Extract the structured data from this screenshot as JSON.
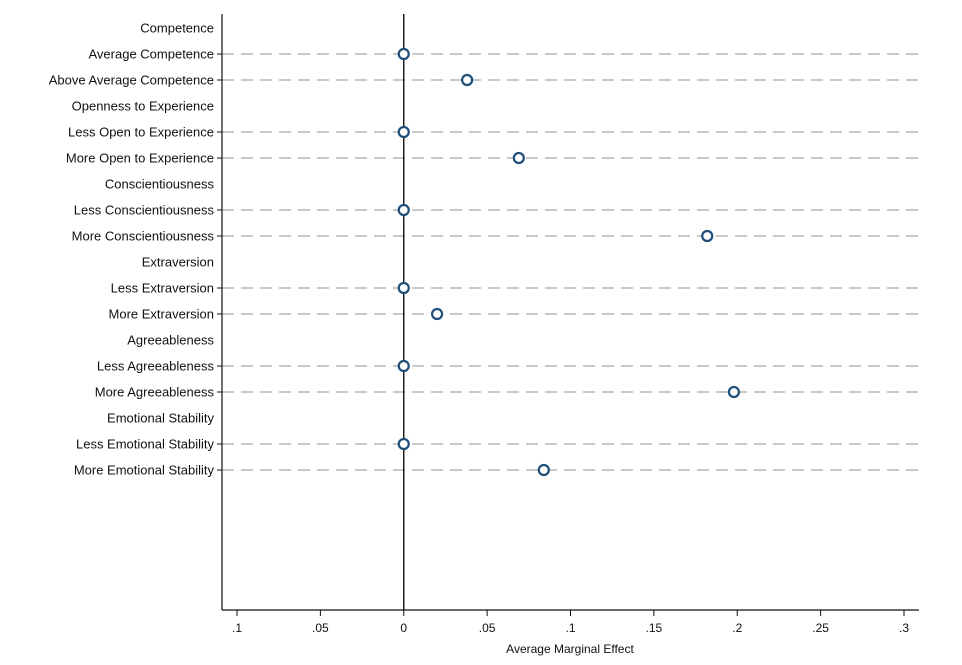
{
  "chart_data": {
    "type": "scatter",
    "xlabel": "Average Marginal Effect",
    "xlim": [
      -0.1,
      0.3
    ],
    "xticks": [
      -0.1,
      -0.05,
      0,
      0.05,
      0.1,
      0.15,
      0.2,
      0.25,
      0.3
    ],
    "xtick_labels": [
      ".1",
      ".05",
      "0",
      ".05",
      ".1",
      ".15",
      ".2",
      ".25",
      ".3"
    ],
    "reference_line": 0,
    "grid": "dashed horizontal at each category row",
    "rows": [
      {
        "label": "Competence",
        "is_header": true
      },
      {
        "label": "Average Competence",
        "value": 0
      },
      {
        "label": "Above Average Competence",
        "value": 0.038
      },
      {
        "label": "Openness to Experience",
        "is_header": true
      },
      {
        "label": "Less Open to Experience",
        "value": 0
      },
      {
        "label": "More Open to Experience",
        "value": 0.069
      },
      {
        "label": "Conscientiousness",
        "is_header": true
      },
      {
        "label": "Less Conscientiousness",
        "value": 0
      },
      {
        "label": "More Conscientiousness",
        "value": 0.182
      },
      {
        "label": "Extraversion",
        "is_header": true
      },
      {
        "label": "Less Extraversion",
        "value": 0
      },
      {
        "label": "More Extraversion",
        "value": 0.02
      },
      {
        "label": "Agreeableness",
        "is_header": true
      },
      {
        "label": "Less Agreeableness",
        "value": 0
      },
      {
        "label": "More Agreeableness",
        "value": 0.198
      },
      {
        "label": "Emotional Stability",
        "is_header": true
      },
      {
        "label": "Less Emotional Stability",
        "value": 0
      },
      {
        "label": "More Emotional Stability",
        "value": 0.084
      }
    ],
    "colors": {
      "marker_stroke": "#1f4e79",
      "marker_fill": "#ffffff",
      "grid": "#c8c8c8",
      "axis": "#111111"
    }
  }
}
